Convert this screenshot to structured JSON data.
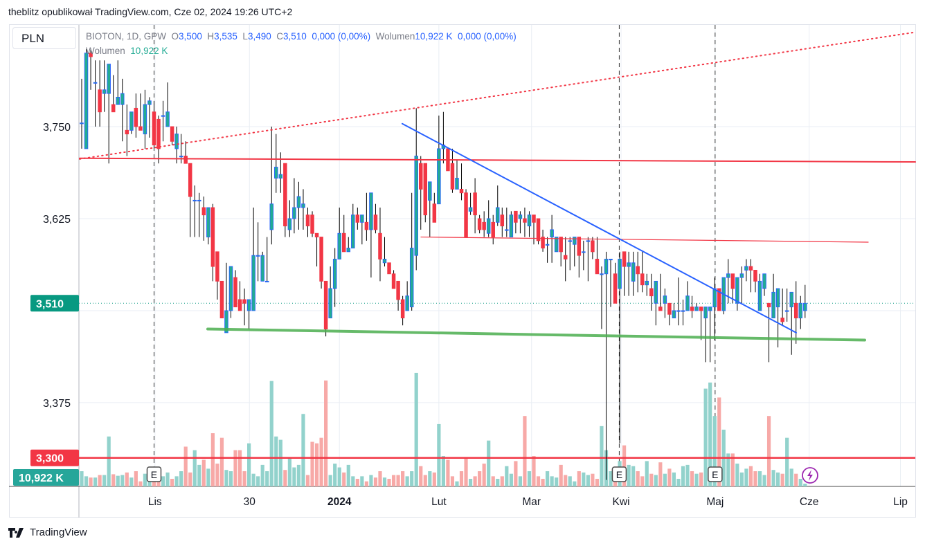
{
  "header": {
    "published": "theblitz opublikował TradingView.com, Cze 02, 2024 19:26 UTC+2"
  },
  "currency_button": "PLN",
  "legend": {
    "symbol": "BIOTON, 1D, GPW",
    "o_label": "O",
    "o": "3,500",
    "h_label": "H",
    "h": "3,535",
    "l_label": "L",
    "l": "3,490",
    "c_label": "C",
    "c": "3,510",
    "change": "0,000 (0,00%)",
    "volume_label": "Wolumen",
    "volume": "10,922 K",
    "volume_change": "0,000 (0,00%)",
    "volume_indicator_label": "Wolumen",
    "volume_indicator_value": "10,922 K"
  },
  "price_axis": {
    "ticks": [
      "3,750",
      "3,625",
      "3,375"
    ],
    "last_price_badge": "3,510",
    "alert_badge": "3,300",
    "volume_badge": "10,922 K"
  },
  "time_axis": {
    "ticks": [
      "Lis",
      "30",
      "2024",
      "Lut",
      "Mar",
      "Kwi",
      "Maj",
      "Cze",
      "Lip"
    ]
  },
  "events": [
    {
      "label": "E"
    },
    {
      "label": "E"
    },
    {
      "label": "E"
    }
  ],
  "event_icons": [
    "lightning-icon"
  ],
  "footer": {
    "brand": "TradingView"
  },
  "colors": {
    "up_body": "#22ab94",
    "up_border": "#2962ff",
    "down": "#f23645",
    "wick": "#000000",
    "volume_up": "#92d2cc",
    "volume_down": "#f7a9a7",
    "last_price": "#089981",
    "alert": "#f23645",
    "trend_blue": "#2962ff",
    "support_green": "#4caf50",
    "event_purple": "#9c27b0"
  },
  "chart_data": {
    "type": "candlestick",
    "symbol": "BIOTON",
    "interval": "1D",
    "exchange": "GPW",
    "ylim": [
      3.28,
      3.88
    ],
    "grid": true,
    "volume_unit": "K",
    "candles_ohlcv": [
      [
        3.755,
        3.815,
        3.72,
        3.755,
        60
      ],
      [
        3.72,
        3.855,
        3.72,
        3.85,
        40
      ],
      [
        3.85,
        3.855,
        3.8,
        3.845,
        35
      ],
      [
        3.81,
        3.84,
        3.75,
        3.81,
        35
      ],
      [
        3.8,
        3.84,
        3.75,
        3.77,
        45
      ],
      [
        3.795,
        3.84,
        3.77,
        3.8,
        45
      ],
      [
        3.795,
        3.835,
        3.7,
        3.835,
        197
      ],
      [
        3.78,
        3.82,
        3.77,
        3.77,
        48
      ],
      [
        3.78,
        3.84,
        3.78,
        3.79,
        42
      ],
      [
        3.78,
        3.815,
        3.73,
        3.795,
        45
      ],
      [
        3.745,
        3.78,
        3.71,
        3.74,
        55
      ],
      [
        3.745,
        3.77,
        3.74,
        3.77,
        35
      ],
      [
        3.775,
        3.795,
        3.735,
        3.75,
        60
      ],
      [
        3.75,
        3.795,
        3.745,
        3.745,
        20
      ],
      [
        3.74,
        3.8,
        3.72,
        3.78,
        50
      ],
      [
        3.78,
        3.79,
        3.735,
        3.785,
        25
      ],
      [
        3.77,
        3.785,
        3.72,
        3.725,
        35
      ],
      [
        3.76,
        3.765,
        3.7,
        3.72,
        55
      ],
      [
        3.765,
        3.785,
        3.73,
        3.765,
        40
      ],
      [
        3.75,
        3.81,
        3.75,
        3.77,
        55
      ],
      [
        3.75,
        3.75,
        3.725,
        3.73,
        30
      ],
      [
        3.72,
        3.75,
        3.7,
        3.74,
        40
      ],
      [
        3.71,
        3.74,
        3.7,
        3.71,
        60
      ],
      [
        3.71,
        3.73,
        3.7,
        3.7,
        157
      ],
      [
        3.7,
        3.7,
        3.6,
        3.655,
        55
      ],
      [
        3.65,
        3.67,
        3.6,
        3.65,
        143
      ],
      [
        3.65,
        3.66,
        3.6,
        3.65,
        85
      ],
      [
        3.64,
        3.655,
        3.595,
        3.63,
        105
      ],
      [
        3.6,
        3.64,
        3.59,
        3.64,
        70
      ],
      [
        3.64,
        3.645,
        3.54,
        3.56,
        210
      ],
      [
        3.58,
        3.58,
        3.515,
        3.54,
        90
      ],
      [
        3.54,
        3.54,
        3.49,
        3.49,
        192
      ],
      [
        3.47,
        3.565,
        3.47,
        3.5,
        65
      ],
      [
        3.5,
        3.56,
        3.49,
        3.56,
        60
      ],
      [
        3.545,
        3.555,
        3.505,
        3.505,
        143
      ],
      [
        3.515,
        3.54,
        3.5,
        3.5,
        143
      ],
      [
        3.515,
        3.53,
        3.48,
        3.51,
        60
      ],
      [
        3.5,
        3.515,
        3.475,
        3.515,
        170
      ],
      [
        3.5,
        3.64,
        3.5,
        3.575,
        50
      ],
      [
        3.575,
        3.62,
        3.54,
        3.575,
        40
      ],
      [
        3.54,
        3.58,
        3.54,
        3.575,
        85
      ],
      [
        3.54,
        3.6,
        3.54,
        3.54,
        60
      ],
      [
        3.61,
        3.75,
        3.59,
        3.645,
        416
      ],
      [
        3.68,
        3.74,
        3.66,
        3.695,
        197
      ],
      [
        3.68,
        3.715,
        3.66,
        3.685,
        184
      ],
      [
        3.7,
        3.7,
        3.6,
        3.615,
        65
      ],
      [
        3.61,
        3.65,
        3.6,
        3.625,
        110
      ],
      [
        3.625,
        3.68,
        3.605,
        3.64,
        75
      ],
      [
        3.64,
        3.675,
        3.61,
        3.655,
        85
      ],
      [
        3.64,
        3.665,
        3.61,
        3.645,
        286
      ],
      [
        3.63,
        3.64,
        3.6,
        3.615,
        45
      ],
      [
        3.63,
        3.635,
        3.6,
        3.605,
        176
      ],
      [
        3.605,
        3.605,
        3.56,
        3.6,
        170
      ],
      [
        3.6,
        3.6,
        3.53,
        3.54,
        192
      ],
      [
        3.54,
        3.54,
        3.465,
        3.475,
        418
      ],
      [
        3.49,
        3.56,
        3.49,
        3.53,
        45
      ],
      [
        3.53,
        3.585,
        3.505,
        3.57,
        90
      ],
      [
        3.57,
        3.64,
        3.57,
        3.605,
        75
      ],
      [
        3.605,
        3.63,
        3.58,
        3.58,
        55
      ],
      [
        3.58,
        3.6,
        3.58,
        3.585,
        85
      ],
      [
        3.585,
        3.645,
        3.585,
        3.63,
        40
      ],
      [
        3.63,
        3.64,
        3.61,
        3.62,
        30
      ],
      [
        3.62,
        3.63,
        3.59,
        3.63,
        40
      ],
      [
        3.62,
        3.66,
        3.595,
        3.61,
        20
      ],
      [
        3.61,
        3.66,
        3.545,
        3.66,
        45
      ],
      [
        3.63,
        3.645,
        3.605,
        3.61,
        35
      ],
      [
        3.605,
        3.64,
        3.54,
        3.57,
        60
      ],
      [
        3.565,
        3.6,
        3.56,
        3.57,
        35
      ],
      [
        3.565,
        3.565,
        3.55,
        3.55,
        30
      ],
      [
        3.55,
        3.555,
        3.53,
        3.53,
        45
      ],
      [
        3.54,
        3.54,
        3.5,
        3.515,
        45
      ],
      [
        3.515,
        3.52,
        3.48,
        3.49,
        60
      ],
      [
        3.5,
        3.54,
        3.5,
        3.52,
        40
      ],
      [
        3.505,
        3.66,
        3.5,
        3.585,
        60
      ],
      [
        3.575,
        3.775,
        3.555,
        3.71,
        448
      ],
      [
        3.7,
        3.71,
        3.61,
        3.665,
        80
      ],
      [
        3.7,
        3.7,
        3.62,
        3.63,
        45
      ],
      [
        3.65,
        3.675,
        3.6,
        3.675,
        60
      ],
      [
        3.645,
        3.66,
        3.62,
        3.62,
        55
      ],
      [
        3.645,
        3.765,
        3.645,
        3.72,
        246
      ],
      [
        3.72,
        3.77,
        3.7,
        3.725,
        120
      ],
      [
        3.72,
        3.72,
        3.69,
        3.69,
        105
      ],
      [
        3.7,
        3.72,
        3.66,
        3.665,
        40
      ],
      [
        3.665,
        3.705,
        3.665,
        3.68,
        20
      ],
      [
        3.665,
        3.7,
        3.65,
        3.66,
        60
      ],
      [
        3.66,
        3.665,
        3.6,
        3.6,
        110
      ],
      [
        3.635,
        3.66,
        3.63,
        3.64,
        30
      ],
      [
        3.66,
        3.68,
        3.605,
        3.63,
        40
      ],
      [
        3.625,
        3.63,
        3.605,
        3.61,
        60
      ],
      [
        3.62,
        3.635,
        3.6,
        3.61,
        90
      ],
      [
        3.605,
        3.65,
        3.6,
        3.625,
        181
      ],
      [
        3.62,
        3.63,
        3.59,
        3.6,
        40
      ],
      [
        3.62,
        3.67,
        3.615,
        3.64,
        30
      ],
      [
        3.63,
        3.64,
        3.6,
        3.615,
        40
      ],
      [
        3.61,
        3.64,
        3.6,
        3.61,
        80
      ],
      [
        3.6,
        3.635,
        3.6,
        3.63,
        50
      ],
      [
        3.635,
        3.635,
        3.605,
        3.62,
        100
      ],
      [
        3.625,
        3.635,
        3.605,
        3.63,
        40
      ],
      [
        3.625,
        3.64,
        3.6,
        3.62,
        278
      ],
      [
        3.615,
        3.635,
        3.6,
        3.63,
        60
      ],
      [
        3.63,
        3.63,
        3.59,
        3.62,
        120
      ],
      [
        3.625,
        3.625,
        3.59,
        3.595,
        40
      ],
      [
        3.6,
        3.61,
        3.58,
        3.585,
        30
      ],
      [
        3.59,
        3.6,
        3.565,
        3.59,
        60
      ],
      [
        3.6,
        3.63,
        3.565,
        3.61,
        40
      ],
      [
        3.58,
        3.6,
        3.58,
        3.6,
        35
      ],
      [
        3.6,
        3.6,
        3.56,
        3.58,
        85
      ],
      [
        3.575,
        3.6,
        3.54,
        3.57,
        45
      ],
      [
        3.595,
        3.6,
        3.555,
        3.595,
        40
      ],
      [
        3.59,
        3.6,
        3.56,
        3.6,
        20
      ],
      [
        3.6,
        3.6,
        3.545,
        3.575,
        60
      ],
      [
        3.58,
        3.595,
        3.555,
        3.58,
        55
      ],
      [
        3.595,
        3.6,
        3.54,
        3.595,
        45
      ],
      [
        3.595,
        3.6,
        3.57,
        3.58,
        50
      ],
      [
        3.57,
        3.6,
        3.55,
        3.55,
        30
      ],
      [
        3.55,
        3.56,
        3.475,
        3.55,
        238
      ],
      [
        3.55,
        3.58,
        3.27,
        3.57,
        143
      ],
      [
        3.57,
        3.57,
        3.505,
        3.57,
        60
      ],
      [
        3.55,
        3.565,
        3.51,
        3.51,
        30
      ],
      [
        3.53,
        3.58,
        3.32,
        3.57,
        100
      ],
      [
        3.58,
        3.58,
        3.52,
        3.56,
        162
      ],
      [
        3.56,
        3.58,
        3.52,
        3.565,
        85
      ],
      [
        3.54,
        3.58,
        3.52,
        3.565,
        80
      ],
      [
        3.56,
        3.58,
        3.525,
        3.55,
        60
      ],
      [
        3.55,
        3.58,
        3.525,
        3.535,
        40
      ],
      [
        3.535,
        3.55,
        3.52,
        3.54,
        100
      ],
      [
        3.53,
        3.55,
        3.5,
        3.52,
        50
      ],
      [
        3.51,
        3.54,
        3.48,
        3.54,
        45
      ],
      [
        3.505,
        3.55,
        3.5,
        3.5,
        95
      ],
      [
        3.51,
        3.53,
        3.49,
        3.52,
        50
      ],
      [
        3.51,
        3.51,
        3.48,
        3.495,
        70
      ],
      [
        3.49,
        3.51,
        3.49,
        3.5,
        55
      ],
      [
        3.5,
        3.545,
        3.48,
        3.5,
        30
      ],
      [
        3.5,
        3.515,
        3.48,
        3.5,
        80
      ],
      [
        3.5,
        3.54,
        3.5,
        3.52,
        85
      ],
      [
        3.505,
        3.52,
        3.49,
        3.5,
        60
      ],
      [
        3.5,
        3.51,
        3.5,
        3.505,
        50
      ],
      [
        3.505,
        3.505,
        3.46,
        3.5,
        55
      ],
      [
        3.49,
        3.505,
        3.43,
        3.505,
        386
      ],
      [
        3.5,
        3.505,
        3.43,
        3.505,
        410
      ],
      [
        3.505,
        3.545,
        3.46,
        3.53,
        278
      ],
      [
        3.53,
        3.53,
        3.5,
        3.5,
        351
      ],
      [
        3.5,
        3.545,
        3.495,
        3.545,
        224
      ],
      [
        3.545,
        3.57,
        3.51,
        3.55,
        130
      ],
      [
        3.55,
        3.55,
        3.51,
        3.53,
        130
      ],
      [
        3.51,
        3.545,
        3.5,
        3.545,
        90
      ],
      [
        3.545,
        3.56,
        3.51,
        3.55,
        55
      ],
      [
        3.555,
        3.57,
        3.54,
        3.56,
        70
      ],
      [
        3.56,
        3.57,
        3.525,
        3.555,
        80
      ],
      [
        3.555,
        3.555,
        3.525,
        3.54,
        60
      ],
      [
        3.5,
        3.55,
        3.5,
        3.54,
        60
      ],
      [
        3.53,
        3.55,
        3.52,
        3.55,
        45
      ],
      [
        3.51,
        3.51,
        3.43,
        3.505,
        278
      ],
      [
        3.49,
        3.55,
        3.49,
        3.525,
        65
      ],
      [
        3.505,
        3.53,
        3.45,
        3.53,
        55
      ],
      [
        3.49,
        3.53,
        3.48,
        3.485,
        50
      ],
      [
        3.5,
        3.53,
        3.485,
        3.5,
        192
      ],
      [
        3.505,
        3.525,
        3.44,
        3.525,
        70
      ],
      [
        3.51,
        3.54,
        3.455,
        3.49,
        50
      ],
      [
        3.49,
        3.52,
        3.475,
        3.51,
        30
      ],
      [
        3.5,
        3.535,
        3.49,
        3.51,
        10.922
      ]
    ],
    "horizontal_levels": [
      {
        "price": 3.3,
        "label": "3,300",
        "color": "#f23645"
      }
    ],
    "last_price": 3.51,
    "drawings": [
      {
        "type": "trendline",
        "color": "#f23645",
        "style": "dotted",
        "prices": [
          3.706,
          3.878
        ]
      },
      {
        "type": "trendline",
        "color": "#f23645",
        "style": "solid",
        "prices": [
          3.707,
          3.702
        ]
      },
      {
        "type": "trendline",
        "color": "#f23645",
        "style": "solid-thin",
        "prices": [
          3.6,
          3.593
        ]
      },
      {
        "type": "trendline",
        "color": "#2962ff",
        "style": "solid",
        "prices": [
          3.754,
          3.47
        ]
      },
      {
        "type": "trendline",
        "color": "#4caf50",
        "style": "solid-thick",
        "prices": [
          3.475,
          3.46
        ]
      }
    ]
  }
}
